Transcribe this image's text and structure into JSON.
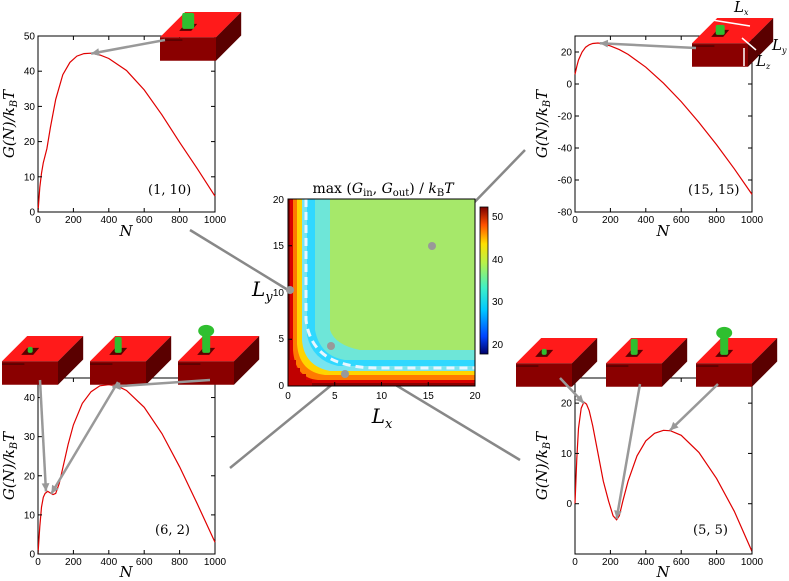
{
  "colors": {
    "curve": "#e00000",
    "arrow": "#999999",
    "cube_top": "#ff1a1a",
    "cube_side": "#8a0000",
    "cube_dark": "#5a0000",
    "cluster": "#2fbf2f",
    "dashed": "#dff4ff"
  },
  "chart_data": [
    {
      "id": "center",
      "type": "heatmap",
      "title": "max (G_in, G_out) / k_B T",
      "xlabel": "L_x",
      "ylabel": "L_y",
      "xlim": [
        0,
        20
      ],
      "ylim": [
        0,
        20
      ],
      "xticks": [
        "0",
        "5",
        "10",
        "15",
        "20"
      ],
      "yticks": [
        "0",
        "5",
        "10",
        "15",
        "20"
      ],
      "colorbar": {
        "min": 17,
        "max": 52,
        "ticks": [
          "20",
          "30",
          "40",
          "50"
        ]
      },
      "plateau_value": 41,
      "boundary_curve_label": "dashed line (G_in = G_out)",
      "marked_points": [
        {
          "label": "(1, 10)",
          "lx": 1,
          "ly": 10
        },
        {
          "label": "(15, 15)",
          "lx": 15,
          "ly": 15
        },
        {
          "label": "(6, 2)",
          "lx": 6,
          "ly": 2
        },
        {
          "label": "(5, 5)",
          "lx": 5,
          "ly": 5
        }
      ]
    },
    {
      "id": "tl",
      "type": "line",
      "annotation": "(1, 10)",
      "xlabel": "N",
      "ylabel": "G(N)/k_B T",
      "xlim": [
        0,
        1000
      ],
      "ylim": [
        0,
        50
      ],
      "xticks": [
        0,
        200,
        400,
        600,
        800,
        1000
      ],
      "yticks": [
        0,
        10,
        20,
        30,
        40,
        50
      ],
      "x": [
        0,
        10,
        20,
        30,
        50,
        70,
        100,
        140,
        180,
        220,
        260,
        300,
        350,
        400,
        500,
        600,
        700,
        800,
        900,
        1000
      ],
      "y": [
        0,
        7,
        11,
        14,
        18,
        24,
        32,
        39,
        42.5,
        44.3,
        45,
        45.1,
        44.6,
        43.6,
        40.2,
        34.7,
        27.6,
        19.8,
        12.3,
        4.5
      ],
      "arrow_to": {
        "x": 300,
        "y": 45
      }
    },
    {
      "id": "tr",
      "type": "line",
      "annotation": "(15, 15)",
      "xlabel": "N",
      "ylabel": "G(N)/k_B T",
      "xlim": [
        0,
        1000
      ],
      "ylim": [
        -80,
        30
      ],
      "xticks": [
        0,
        200,
        400,
        600,
        800,
        1000
      ],
      "yticks": [
        -80,
        -60,
        -40,
        -20,
        0,
        20
      ],
      "x": [
        0,
        10,
        20,
        40,
        60,
        80,
        100,
        130,
        160,
        200,
        250,
        300,
        400,
        500,
        600,
        700,
        800,
        900,
        1000
      ],
      "y": [
        6,
        11,
        15,
        20,
        23,
        24.5,
        25.3,
        25.6,
        25.1,
        23.8,
        21.5,
        18.5,
        10.5,
        0.5,
        -11,
        -24,
        -38,
        -53,
        -69
      ],
      "arrow_to": {
        "x": 140,
        "y": 25.5
      },
      "dimension_labels": [
        "L_x",
        "L_y",
        "L_z"
      ]
    },
    {
      "id": "bl",
      "type": "line",
      "annotation": "(6, 2)",
      "xlabel": "N",
      "ylabel": "G(N)/k_B T",
      "xlim": [
        0,
        1000
      ],
      "ylim": [
        0,
        45
      ],
      "xticks": [
        0,
        200,
        400,
        600,
        800,
        1000
      ],
      "yticks": [
        0,
        10,
        20,
        30,
        40
      ],
      "x": [
        0,
        10,
        20,
        30,
        40,
        55,
        70,
        85,
        100,
        120,
        140,
        170,
        200,
        250,
        300,
        350,
        400,
        450,
        500,
        600,
        700,
        800,
        900,
        1000
      ],
      "y": [
        0,
        7,
        12,
        14.5,
        15.5,
        16,
        15.6,
        15.2,
        15.5,
        18,
        22,
        28,
        33,
        38.5,
        41.5,
        43,
        43.3,
        42.9,
        41.8,
        37.5,
        30.8,
        22.3,
        12.8,
        3
      ],
      "arrows_to": [
        {
          "x": 45,
          "y": 16
        },
        {
          "x": 75,
          "y": 15.4
        },
        {
          "x": 420,
          "y": 43.3
        }
      ]
    },
    {
      "id": "br",
      "type": "line",
      "annotation": "(5, 5)",
      "xlabel": "N",
      "ylabel": "G(N)/k_B T",
      "xlim": [
        0,
        1000
      ],
      "ylim": [
        -10,
        25
      ],
      "xticks": [
        0,
        200,
        400,
        600,
        800,
        1000
      ],
      "yticks": [
        0,
        10,
        20
      ],
      "x": [
        0,
        10,
        20,
        35,
        50,
        65,
        80,
        100,
        130,
        160,
        190,
        215,
        235,
        250,
        270,
        300,
        350,
        400,
        450,
        500,
        540,
        600,
        700,
        800,
        900,
        1000
      ],
      "y": [
        0,
        9,
        15,
        19,
        20.2,
        19.8,
        18.5,
        15.5,
        10,
        4.5,
        0.5,
        -2.4,
        -3.2,
        -2.4,
        0.5,
        4.5,
        9.5,
        12.5,
        14,
        14.6,
        14.5,
        13.6,
        10.2,
        5,
        -1.5,
        -9.5
      ],
      "arrows_to": [
        {
          "x": 50,
          "y": 20
        },
        {
          "x": 235,
          "y": -3
        },
        {
          "x": 520,
          "y": 14.6
        }
      ]
    }
  ]
}
